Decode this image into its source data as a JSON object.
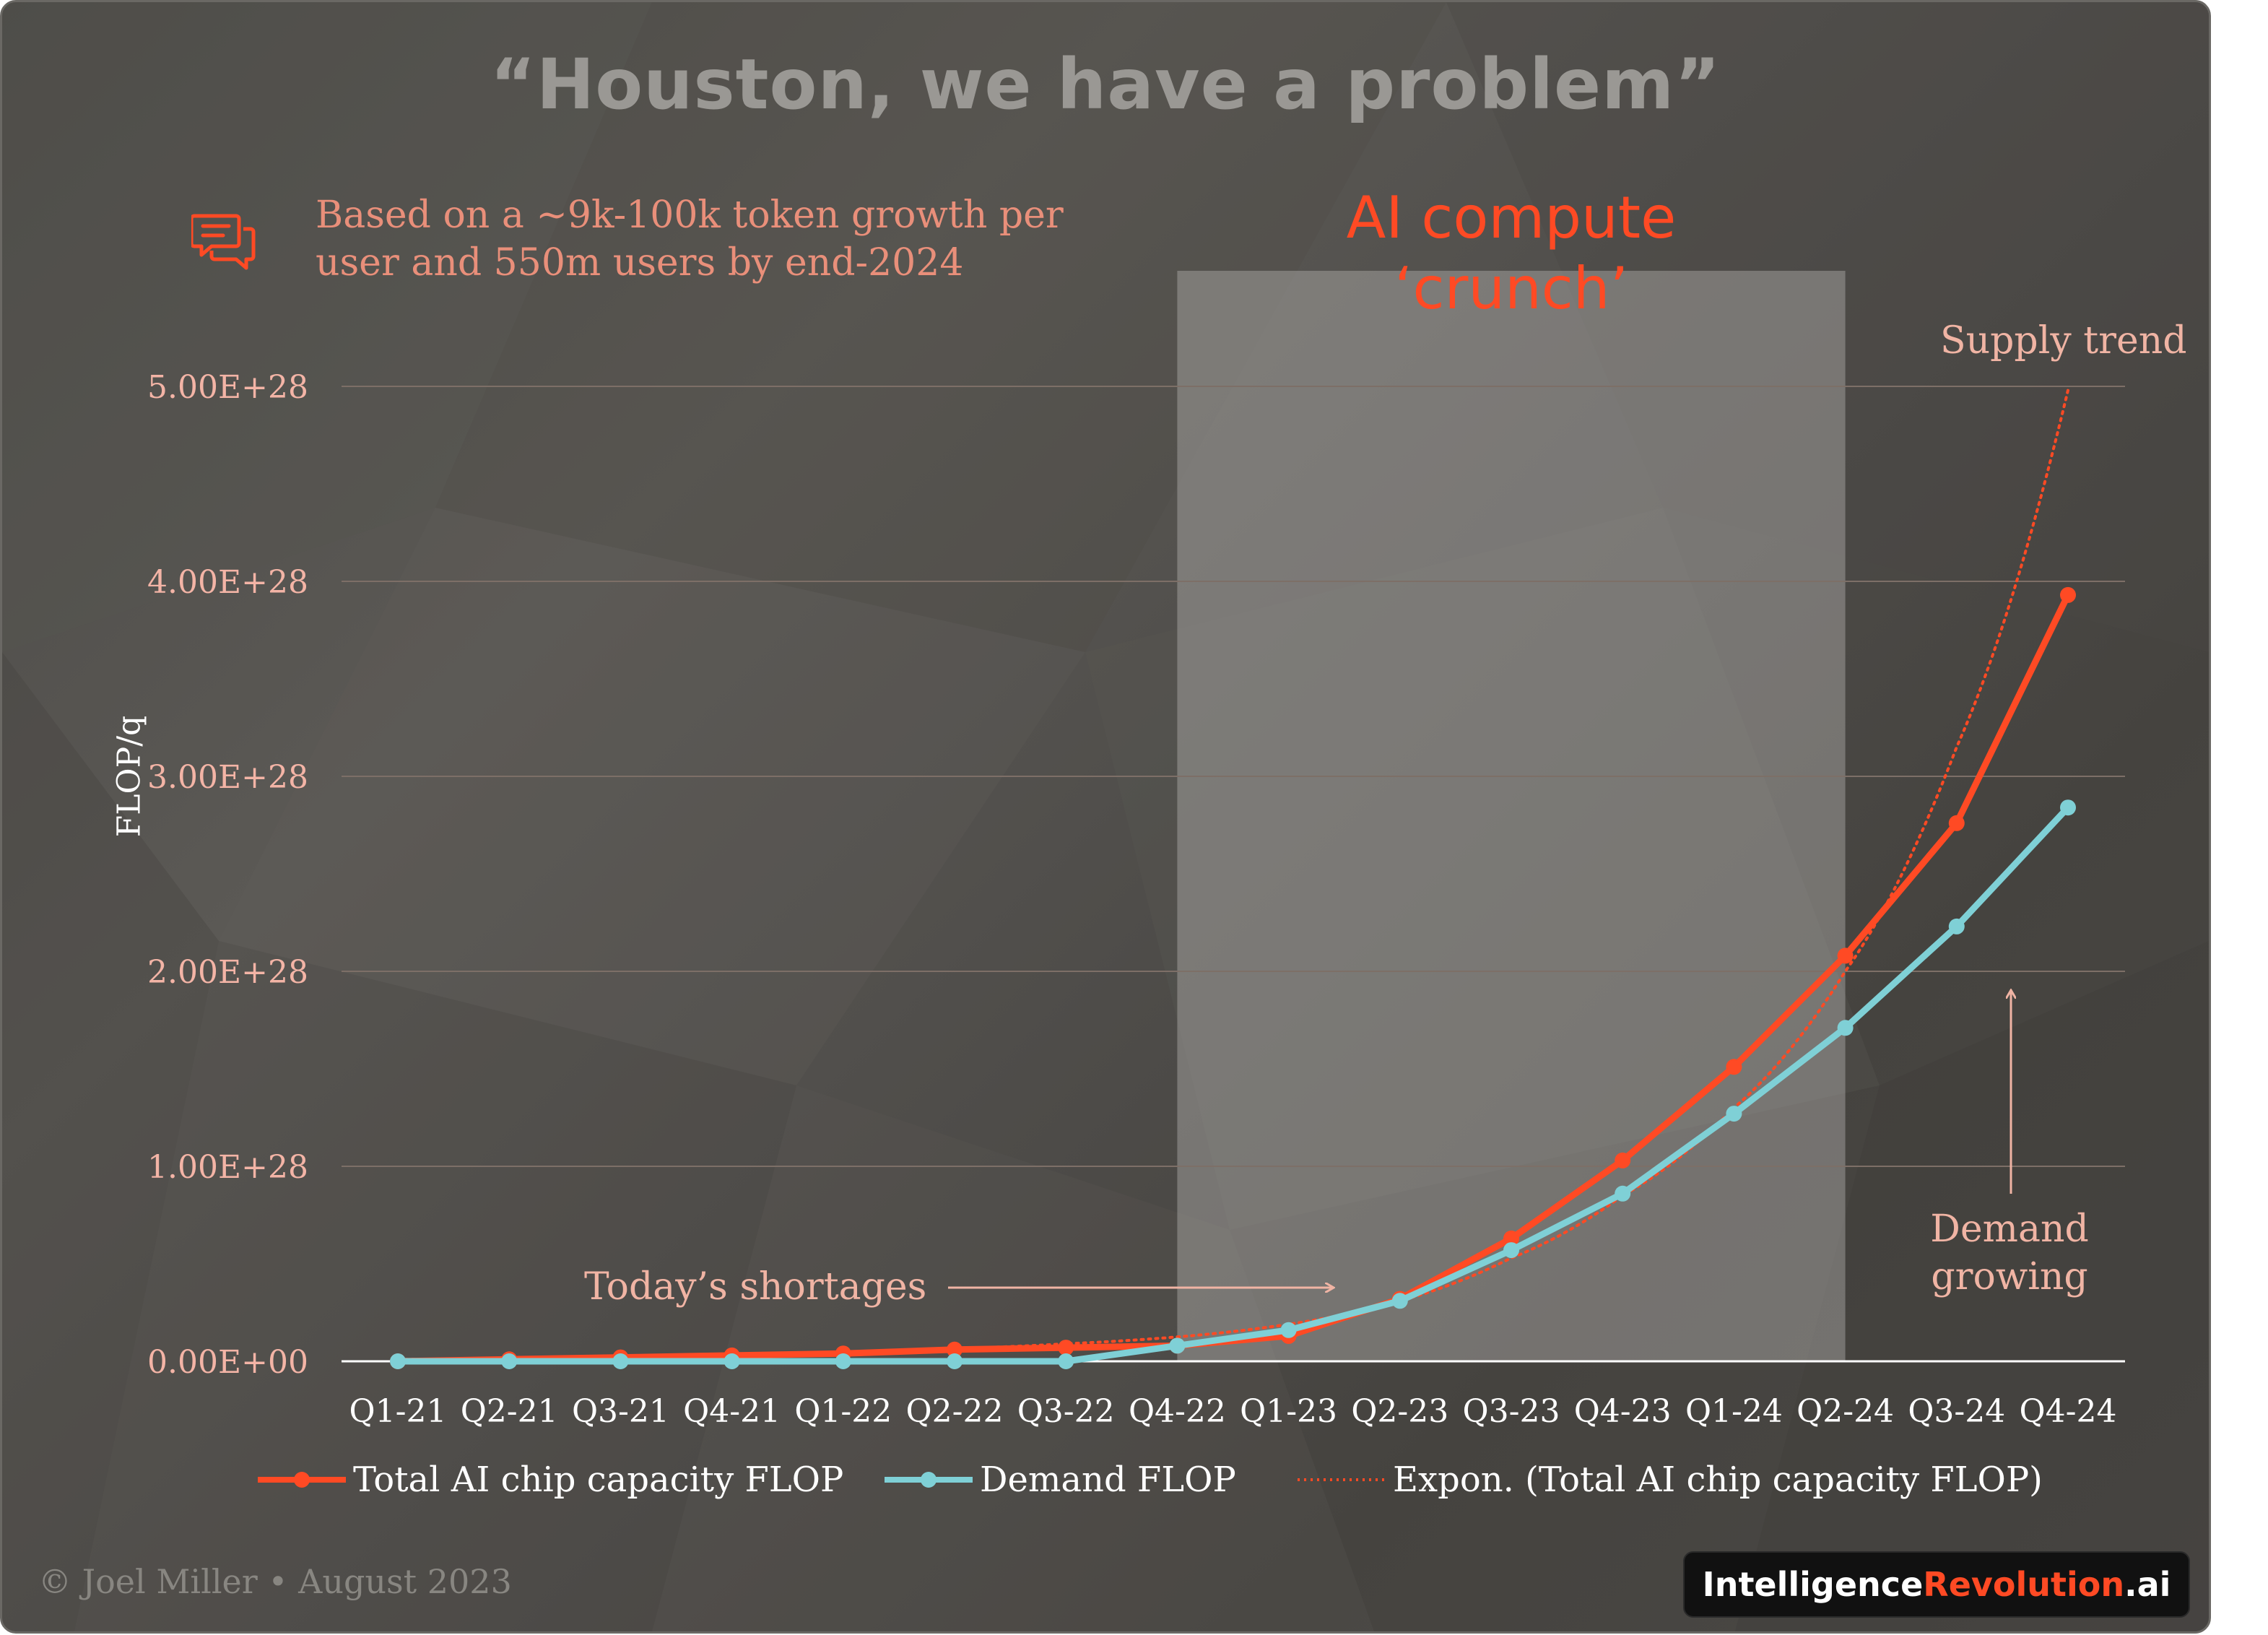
{
  "title": "“Houston, we have a problem”",
  "note": {
    "line1": "Based on a ~9k-100k token growth per",
    "line2": "user and 550m users by end-2024",
    "icon": "chat-bubbles-icon"
  },
  "crunch_label": {
    "line1": "AI compute",
    "line2": "‘crunch’"
  },
  "annotations": {
    "supply_trend": "Supply trend",
    "todays_shortages": "Today’s shortages",
    "demand_growing_1": "Demand",
    "demand_growing_2": "growing"
  },
  "footer": {
    "copyright": "© Joel Miller • August 2023"
  },
  "brand": {
    "part1": "Intelligence",
    "part2": "Revolution",
    "part3": ".ai"
  },
  "colors": {
    "supply": "#ff4a24",
    "demand": "#7fd0d6",
    "trend": "#ff4a24",
    "crunch_band": "#b8b6b2",
    "grid": "#7d6f67",
    "tick_label": "#f3b4a6"
  },
  "chart_data": {
    "type": "line",
    "title": "“Houston, we have a problem”",
    "xlabel": "",
    "ylabel": "FLOP/q",
    "categories": [
      "Q1-21",
      "Q2-21",
      "Q3-21",
      "Q4-21",
      "Q1-22",
      "Q2-22",
      "Q3-22",
      "Q4-22",
      "Q1-23",
      "Q2-23",
      "Q3-23",
      "Q4-23",
      "Q1-24",
      "Q2-24",
      "Q3-24",
      "Q4-24"
    ],
    "ylim": [
      0,
      5e+28
    ],
    "yticks": [
      0,
      1e+28,
      2e+28,
      3e+28,
      4e+28,
      5e+28
    ],
    "ytick_labels": [
      "0.00E+00",
      "1.00E+28",
      "2.00E+28",
      "3.00E+28",
      "4.00E+28",
      "5.00E+28"
    ],
    "grid": "horizontal",
    "legend": "bottom",
    "highlight_band": {
      "from": "Q4-22",
      "to": "Q2-24"
    },
    "series": [
      {
        "name": "Total AI chip capacity FLOP",
        "style": "solid-markers",
        "values": [
          0.0,
          1e+26,
          2e+26,
          3e+26,
          4e+26,
          6e+26,
          7e+26,
          8e+26,
          1.3e+27,
          3.2e+27,
          6.3e+27,
          1.03e+28,
          1.51e+28,
          2.08e+28,
          2.76e+28,
          3.93e+28
        ]
      },
      {
        "name": "Demand FLOP",
        "style": "solid-markers",
        "values": [
          0.0,
          0.0,
          0.0,
          0.0,
          0.0,
          0.0,
          0.0,
          8e+26,
          1.6e+27,
          3.1e+27,
          5.7e+27,
          8.6e+27,
          1.27e+28,
          1.71e+28,
          2.23e+28,
          2.84e+28
        ]
      },
      {
        "name": "Expon. (Total AI chip capacity FLOP)",
        "style": "dotted",
        "values": [
          1e+26,
          1.5e+26,
          2.2e+26,
          3e+26,
          4.5e+26,
          6.5e+26,
          9e+26,
          1.25e+27,
          1.9e+27,
          3.1e+27,
          5.3e+27,
          8.5e+27,
          1.3e+28,
          2e+28,
          3.15e+28,
          4.98e+28
        ]
      }
    ]
  }
}
